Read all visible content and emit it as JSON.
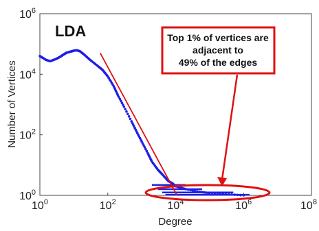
{
  "chart_data": {
    "type": "scatter",
    "title": "",
    "panel_label": "LDA",
    "xlabel": "Degree",
    "ylabel": "Number of Vertices",
    "x_scale": "log",
    "y_scale": "log",
    "xlim": [
      1,
      100000000
    ],
    "ylim": [
      1,
      1000000
    ],
    "x_ticks": [
      {
        "base": "10",
        "exp": "0",
        "value": 1
      },
      {
        "base": "10",
        "exp": "2",
        "value": 100
      },
      {
        "base": "10",
        "exp": "4",
        "value": 10000
      },
      {
        "base": "10",
        "exp": "6",
        "value": 1000000
      },
      {
        "base": "10",
        "exp": "8",
        "value": 100000000
      }
    ],
    "y_ticks": [
      {
        "base": "10",
        "exp": "0",
        "value": 1
      },
      {
        "base": "10",
        "exp": "2",
        "value": 100
      },
      {
        "base": "10",
        "exp": "4",
        "value": 10000
      },
      {
        "base": "10",
        "exp": "6",
        "value": 1000000
      }
    ],
    "grid": false,
    "series": [
      {
        "color": "#1f1fe6",
        "points": [
          [
            1,
            40000
          ],
          [
            1.5,
            30000
          ],
          [
            2,
            27000
          ],
          [
            3,
            32000
          ],
          [
            4,
            38000
          ],
          [
            5,
            45000
          ],
          [
            6,
            51000
          ],
          [
            8,
            56000
          ],
          [
            10,
            60000
          ],
          [
            12,
            62000
          ],
          [
            15,
            58000
          ],
          [
            20,
            45000
          ],
          [
            30,
            30000
          ],
          [
            50,
            19000
          ],
          [
            70,
            14000
          ],
          [
            100,
            8500
          ],
          [
            150,
            4000
          ],
          [
            200,
            2000
          ],
          [
            300,
            850
          ],
          [
            500,
            280
          ],
          [
            700,
            130
          ],
          [
            1000,
            60
          ],
          [
            1500,
            25
          ],
          [
            2000,
            13
          ],
          [
            3000,
            7
          ],
          [
            4000,
            5
          ],
          [
            6000,
            3
          ],
          [
            8000,
            2.5
          ],
          [
            10000,
            2
          ],
          [
            20000,
            1.6
          ],
          [
            50000,
            1.3
          ],
          [
            100000,
            1.2
          ],
          [
            300000,
            1.1
          ],
          [
            1000000,
            1
          ]
        ]
      }
    ],
    "fit_line": {
      "color": "#e01010",
      "from": [
        60,
        50000
      ],
      "to": [
        11000,
        1
      ]
    },
    "annotations": {
      "box_text": [
        "Top 1% of vertices are",
        "adjacent to",
        "49% of the edges"
      ],
      "box_color": "#e01010",
      "ellipse": {
        "color": "#e01010",
        "x_range": [
          3000,
          5000000
        ],
        "y_center": 1
      }
    }
  }
}
